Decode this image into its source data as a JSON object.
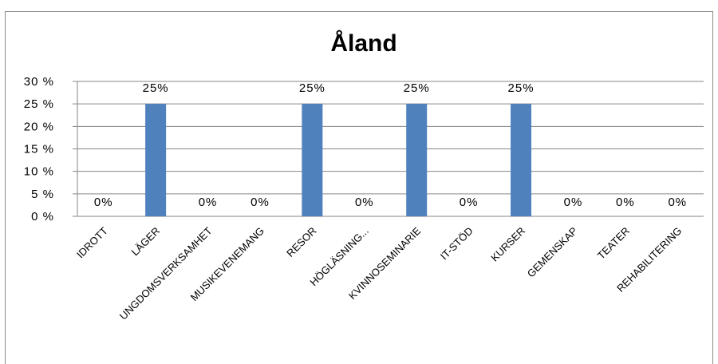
{
  "chart_data": {
    "type": "bar",
    "title": "Åland",
    "xlabel": "",
    "ylabel": "",
    "categories": [
      "IDROTT",
      "LÄGER",
      "UNGDOMSVERKSAMHET",
      "MUSIKEVENEMANG",
      "RESOR",
      "HÖGLÄSNING...",
      "KVINNOSEMINARIE",
      "IT-STÖD",
      "KURSER",
      "GEMENSKAP",
      "TEATER",
      "REHABILITERING"
    ],
    "series": [
      {
        "values": [
          0,
          25,
          0,
          0,
          25,
          0,
          25,
          0,
          25,
          0,
          0,
          0
        ]
      }
    ],
    "data_labels": [
      "0%",
      "25%",
      "0%",
      "0%",
      "25%",
      "0%",
      "25%",
      "0%",
      "25%",
      "0%",
      "0%",
      "0%"
    ],
    "ylim": [
      0,
      30
    ],
    "yticks": [
      0,
      5,
      10,
      15,
      20,
      25,
      30
    ],
    "ytick_labels": [
      "0 %",
      "5 %",
      "10 %",
      "15 %",
      "20 %",
      "25 %",
      "30 %"
    ],
    "grid": true,
    "legend": "none",
    "bar_color": "#4f81bd",
    "grid_color": "#868686"
  }
}
